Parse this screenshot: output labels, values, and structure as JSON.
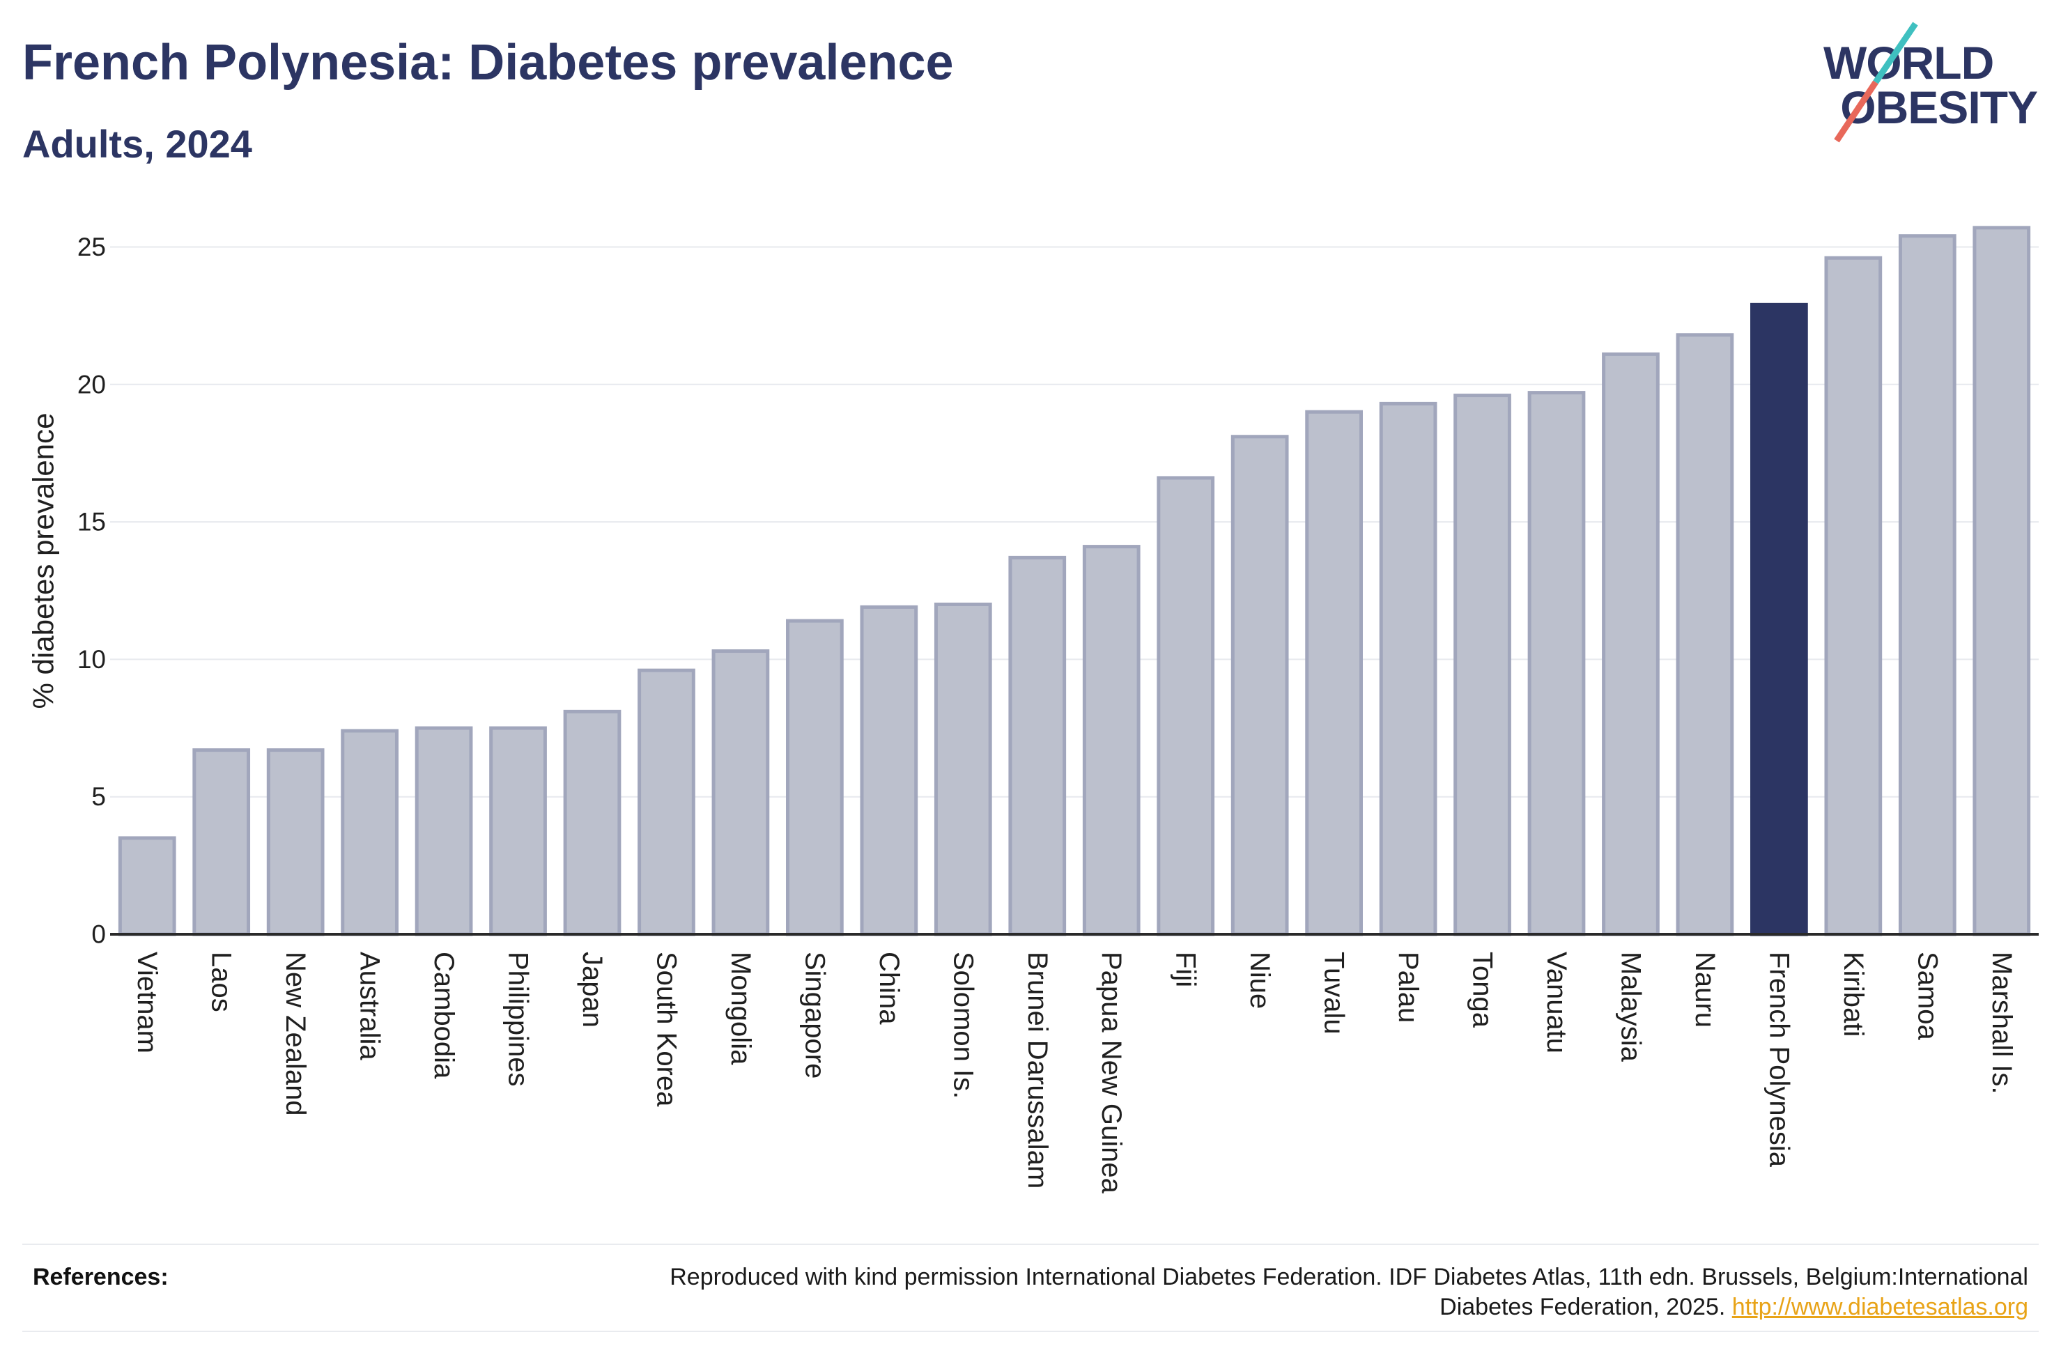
{
  "chart_data": {
    "type": "bar",
    "title": "French Polynesia: Diabetes prevalence",
    "subtitle": "Adults, 2024",
    "ylabel": "% diabetes prevalence",
    "ylim": [
      0,
      26
    ],
    "yticks": [
      0,
      5,
      10,
      15,
      20,
      25
    ],
    "grid": true,
    "categories": [
      "Vietnam",
      "Laos",
      "New Zealand",
      "Australia",
      "Cambodia",
      "Philippines",
      "Japan",
      "South Korea",
      "Mongolia",
      "Singapore",
      "China",
      "Solomon Is.",
      "Brunei Darussalam",
      "Papua New Guinea",
      "Fiji",
      "Niue",
      "Tuvalu",
      "Palau",
      "Tonga",
      "Vanuatu",
      "Malaysia",
      "Nauru",
      "French Polynesia",
      "Kiribati",
      "Samoa",
      "Marshall Is."
    ],
    "values": [
      3.5,
      6.7,
      6.7,
      7.4,
      7.5,
      7.5,
      8.1,
      9.6,
      10.3,
      11.4,
      11.9,
      12.0,
      13.7,
      14.1,
      16.6,
      18.1,
      19.0,
      19.3,
      19.6,
      19.7,
      21.1,
      21.8,
      22.9,
      24.6,
      25.4,
      25.7
    ],
    "bar_colors": [
      "#bcc0cd",
      "#bcc0cd",
      "#bcc0cd",
      "#bcc0cd",
      "#bcc0cd",
      "#bcc0cd",
      "#bcc0cd",
      "#bcc0cd",
      "#bcc0cd",
      "#bcc0cd",
      "#bcc0cd",
      "#bcc0cd",
      "#bcc0cd",
      "#bcc0cd",
      "#bcc0cd",
      "#bcc0cd",
      "#bcc0cd",
      "#bcc0cd",
      "#bcc0cd",
      "#bcc0cd",
      "#bcc0cd",
      "#bcc0cd",
      "#2c3563",
      "#bcc0cd",
      "#bcc0cd",
      "#bcc0cd"
    ]
  },
  "logo": {
    "line1": "WORLD",
    "line2": "OBESITY"
  },
  "references": {
    "label": "References:",
    "text": "Reproduced with kind permission International Diabetes Federation. IDF Diabetes Atlas, 11th edn. Brussels, Belgium:International Diabetes Federation, 2025.",
    "link": "http://www.diabetesatlas.org"
  },
  "colors": {
    "text_navy": "#2c3563",
    "bar_border": "#a1a6bc",
    "highlight_bar": "#2c3563",
    "gridline": "#e7e9ee",
    "axis_line": "#2a2a2a",
    "logo_teal": "#3fc0c0",
    "logo_orange": "#e8685a",
    "link": "#e8a317"
  }
}
